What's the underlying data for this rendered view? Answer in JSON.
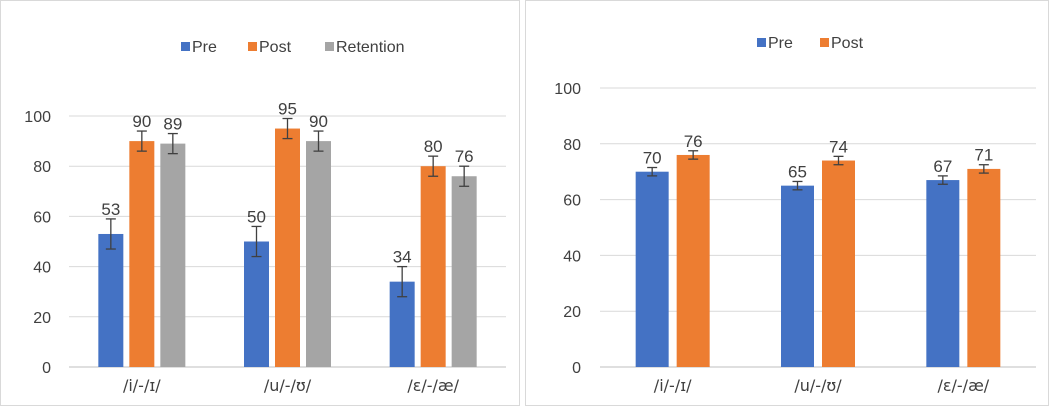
{
  "chart_data": [
    {
      "type": "bar",
      "title": "",
      "xlabel": "",
      "ylabel": "",
      "ylim": [
        0,
        100
      ],
      "yticks": [
        0,
        20,
        40,
        60,
        80,
        100
      ],
      "grid": true,
      "legend_position": "top",
      "categories": [
        "/i/-/ɪ/",
        "/u/-/ʊ/",
        "/ɛ/-/æ/"
      ],
      "series": [
        {
          "name": "Pre",
          "color": "#4472c4",
          "values": [
            53,
            50,
            34
          ],
          "error": [
            6,
            6,
            6
          ]
        },
        {
          "name": "Post",
          "color": "#ed7d31",
          "values": [
            90,
            95,
            80
          ],
          "error": [
            4,
            4,
            4
          ]
        },
        {
          "name": "Retention",
          "color": "#a5a5a5",
          "values": [
            89,
            90,
            76
          ],
          "error": [
            4,
            4,
            4
          ]
        }
      ]
    },
    {
      "type": "bar",
      "title": "",
      "xlabel": "",
      "ylabel": "",
      "ylim": [
        0,
        100
      ],
      "yticks": [
        0,
        20,
        40,
        60,
        80,
        100
      ],
      "grid": true,
      "legend_position": "top",
      "categories": [
        "/i/-/ɪ/",
        "/u/-/ʊ/",
        "/ɛ/-/æ/"
      ],
      "series": [
        {
          "name": "Pre",
          "color": "#4472c4",
          "values": [
            70,
            65,
            67
          ],
          "error": [
            1.5,
            1.5,
            1.5
          ]
        },
        {
          "name": "Post",
          "color": "#ed7d31",
          "values": [
            76,
            74,
            71
          ],
          "error": [
            1.5,
            1.5,
            1.5
          ]
        }
      ]
    }
  ]
}
